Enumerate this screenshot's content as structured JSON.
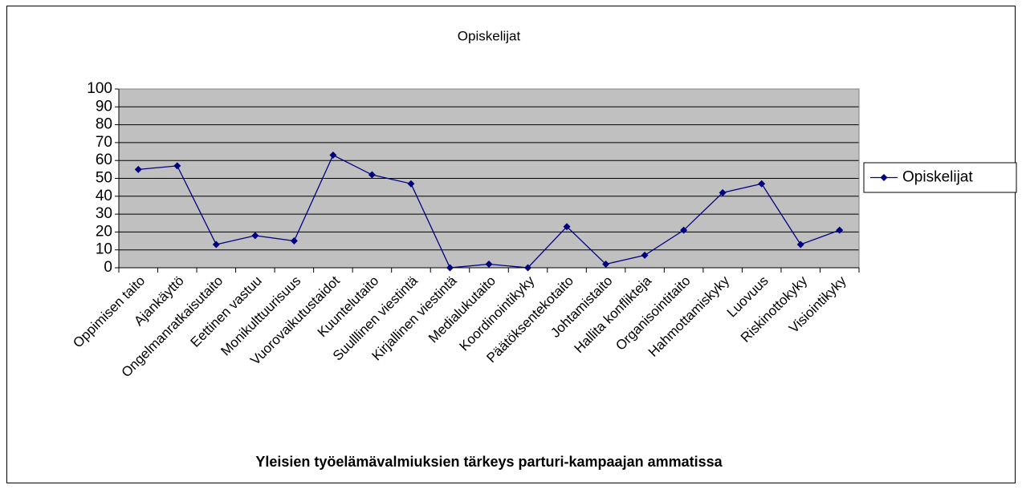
{
  "chart_data": {
    "type": "line",
    "title": "Opiskelijat",
    "x_label": "Yleisien työelämävalmiuksien tärkeys parturi-kampaajan ammatissa",
    "categories": [
      "Oppimisen taito",
      "Ajankäyttö",
      "Ongelmanratkaisutaito",
      "Eettinen vastuu",
      "Monikulttuurisuus",
      "Vuorovaikutustaidot",
      "Kuuntelutaito",
      "Suulllinen viestintä",
      "Kirjallinen viestintä",
      "Medialukutaito",
      "Koordinointikyky",
      "Päätöksentekotaito",
      "Johtamistaito",
      "Hallita konflikteja",
      "Organisointitaito",
      "Hahmottamiskyky",
      "Luovuus",
      "Riskinottokyky",
      "Visiointikyky"
    ],
    "series": [
      {
        "name": "Opiskelijat",
        "color": "#000080",
        "values": [
          55,
          57,
          13,
          18,
          15,
          63,
          52,
          47,
          0,
          2,
          0,
          23,
          2,
          7,
          21,
          42,
          47,
          13,
          21
        ]
      }
    ],
    "ylim": [
      0,
      100
    ],
    "yticks": [
      0,
      10,
      20,
      30,
      40,
      50,
      60,
      70,
      80,
      90,
      100
    ],
    "grid": true,
    "legend": "right"
  }
}
